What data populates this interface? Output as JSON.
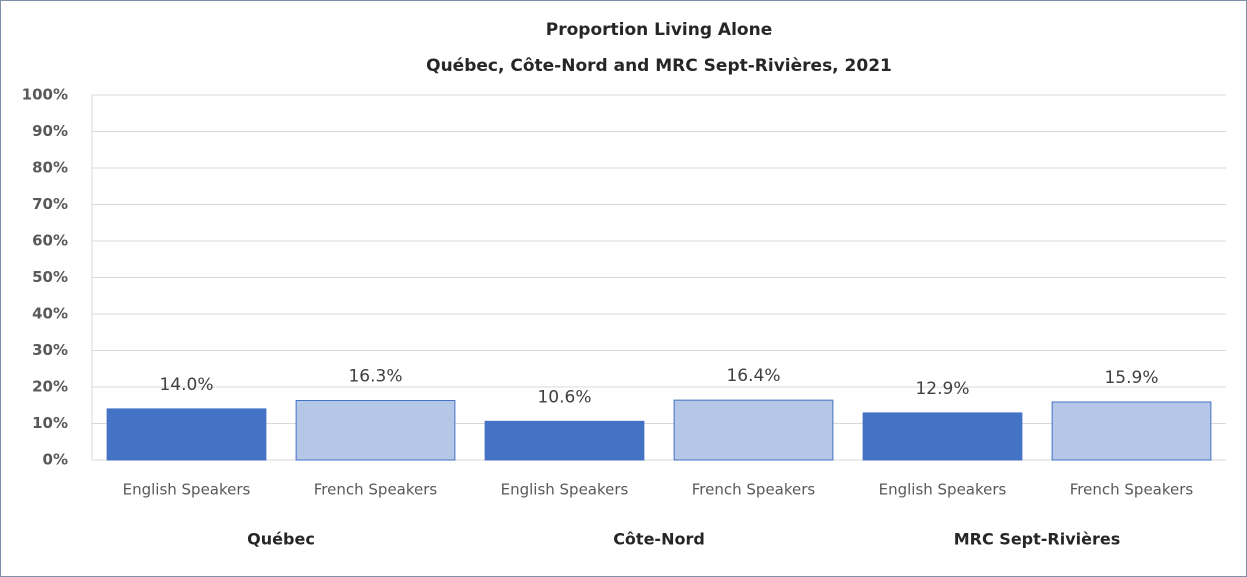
{
  "chart_data": {
    "type": "bar",
    "title": "Proportion Living Alone",
    "subtitle": "Québec, Côte-Nord and MRC Sept-Rivières, 2021",
    "categories": [
      "English Speakers",
      "French Speakers",
      "English Speakers",
      "French Speakers",
      "English Speakers",
      "French Speakers"
    ],
    "groups": [
      "Québec",
      "Côte-Nord",
      "MRC Sept-Rivières"
    ],
    "values": [
      14.0,
      16.3,
      10.6,
      16.4,
      12.9,
      15.9
    ],
    "value_labels": [
      "14.0%",
      "16.3%",
      "10.6%",
      "16.4%",
      "12.9%",
      "15.9%"
    ],
    "colors": [
      "#4472c4",
      "#b4c7e7",
      "#4472c4",
      "#b4c7e7",
      "#4472c4",
      "#b4c7e7"
    ],
    "ylim": [
      0,
      100
    ],
    "yticks": [
      {
        "value": 0,
        "label": "0%"
      },
      {
        "value": 10,
        "label": "10%"
      },
      {
        "value": 20,
        "label": "20%"
      },
      {
        "value": 30,
        "label": "30%"
      },
      {
        "value": 40,
        "label": "40%"
      },
      {
        "value": 50,
        "label": "50%"
      },
      {
        "value": 60,
        "label": "60%"
      },
      {
        "value": 70,
        "label": "70%"
      },
      {
        "value": 80,
        "label": "80%"
      },
      {
        "value": 90,
        "label": "90%"
      },
      {
        "value": 100,
        "label": "100%"
      }
    ],
    "grid": true
  }
}
